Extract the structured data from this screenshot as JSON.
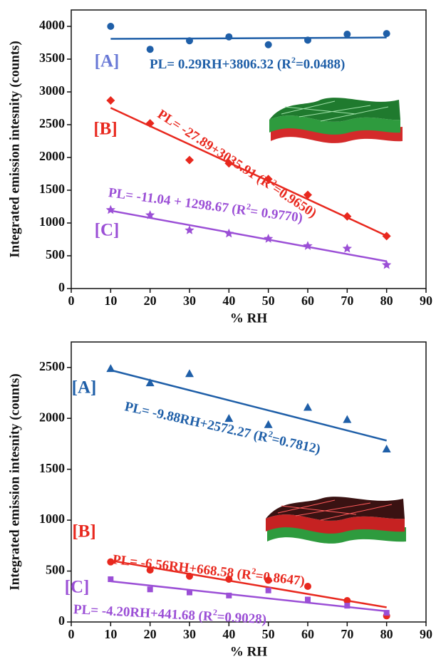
{
  "chart_data": [
    {
      "type": "scatter",
      "x_label": "% RH",
      "y_label": "Integrated emission intesnity (counts)",
      "x": [
        10,
        20,
        30,
        40,
        50,
        60,
        70,
        80
      ],
      "xlim": [
        0,
        90
      ],
      "xticks": [
        0,
        10,
        20,
        30,
        40,
        50,
        60,
        70,
        80,
        90
      ],
      "ylim": [
        0,
        4250
      ],
      "yticks": [
        0,
        500,
        1000,
        1500,
        2000,
        2500,
        3000,
        3500,
        4000
      ],
      "series": [
        {
          "name": "[A]",
          "color": "#1f5fa8",
          "label_color": "#6979d6",
          "marker": "circle",
          "values": [
            4000,
            3650,
            3780,
            3840,
            3720,
            3790,
            3880,
            3890
          ],
          "fit": {
            "slope": 0.29,
            "intercept": 3806.32,
            "equation": [
              "PL= 0.29RH+3806.32 (R",
              "2",
              "=0.0488)"
            ]
          }
        },
        {
          "name": "[B]",
          "color": "#e8281e",
          "label_color": "#e8281e",
          "marker": "diamond",
          "values": [
            2870,
            2520,
            1960,
            1910,
            1670,
            1430,
            1100,
            800
          ],
          "fit": {
            "slope": -27.89,
            "intercept": 3035.91,
            "equation": [
              "PL= -27.89+3035.91 (R",
              "2",
              "=0.9650)"
            ]
          }
        },
        {
          "name": "[C]",
          "color": "#9b4fd6",
          "label_color": "#9b4fd6",
          "marker": "star",
          "values": [
            1200,
            1120,
            890,
            840,
            760,
            650,
            610,
            360
          ],
          "fit": {
            "slope": -11.04,
            "intercept": 1298.67,
            "equation": [
              "PL= -11.04 + 1298.67 (R",
              "2",
              "= 0.9770)"
            ]
          }
        }
      ]
    },
    {
      "type": "scatter",
      "x_label": "% RH",
      "y_label": "Integrated emission intesnity (counts)",
      "x": [
        10,
        20,
        30,
        40,
        50,
        60,
        70,
        80
      ],
      "xlim": [
        0,
        90
      ],
      "xticks": [
        0,
        10,
        20,
        30,
        40,
        50,
        60,
        70,
        80,
        90
      ],
      "ylim": [
        0,
        2750
      ],
      "yticks": [
        0,
        500,
        1000,
        1500,
        2000,
        2500
      ],
      "series": [
        {
          "name": "[A]",
          "color": "#1f5fa8",
          "label_color": "#1f5fa8",
          "marker": "triangle",
          "values": [
            2490,
            2350,
            2440,
            2000,
            1940,
            2110,
            1990,
            1700
          ],
          "fit": {
            "slope": -9.88,
            "intercept": 2572.27,
            "equation": [
              "PL= -9.88RH+2572.27 (R",
              "2",
              "=0.7812)"
            ]
          }
        },
        {
          "name": "[B]",
          "color": "#e8281e",
          "label_color": "#e8281e",
          "marker": "circle",
          "values": [
            590,
            510,
            450,
            420,
            410,
            350,
            210,
            60
          ],
          "fit": {
            "slope": -6.56,
            "intercept": 668.58,
            "equation": [
              "PL= -6.56RH+668.58 (R",
              "2",
              "=0.8647)"
            ]
          }
        },
        {
          "name": "[C]",
          "color": "#9b4fd6",
          "label_color": "#9b4fd6",
          "marker": "square",
          "values": [
            420,
            320,
            290,
            260,
            310,
            220,
            160,
            90
          ],
          "fit": {
            "slope": -4.2,
            "intercept": 441.68,
            "equation": [
              "PL= -4.20RH+441.68 (R",
              "2",
              "=0.9028)"
            ]
          }
        }
      ]
    }
  ]
}
